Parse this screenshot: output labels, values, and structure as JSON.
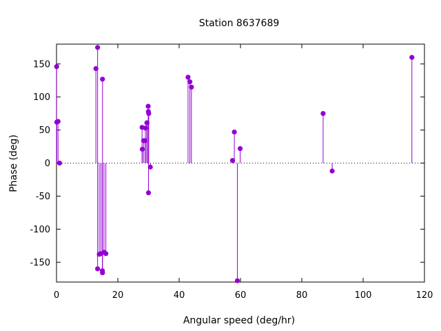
{
  "chart_data": {
    "type": "scatter",
    "style": "impulses-with-points",
    "title": "Station 8637689",
    "xlabel": "Angular speed (deg/hr)",
    "ylabel": "Phase (deg)",
    "xlim": [
      0,
      120
    ],
    "ylim": [
      -180,
      180
    ],
    "xticks": [
      0,
      20,
      40,
      60,
      80,
      100,
      120
    ],
    "yticks": [
      -150,
      -100,
      -50,
      0,
      50,
      100,
      150
    ],
    "zero_line": "dotted",
    "grid": false,
    "legend": "none",
    "color": "#9400d3",
    "points": [
      {
        "x": 0.04,
        "y": 146
      },
      {
        "x": 0.08,
        "y": 62
      },
      {
        "x": 0.5,
        "y": 63
      },
      {
        "x": 1.0,
        "y": 0
      },
      {
        "x": 12.85,
        "y": 143
      },
      {
        "x": 13.4,
        "y": -160
      },
      {
        "x": 13.4,
        "y": 175
      },
      {
        "x": 13.94,
        "y": -138
      },
      {
        "x": 14.5,
        "y": -137
      },
      {
        "x": 14.96,
        "y": -163
      },
      {
        "x": 15.0,
        "y": -166
      },
      {
        "x": 15.0,
        "y": 127
      },
      {
        "x": 15.5,
        "y": -135
      },
      {
        "x": 16.1,
        "y": -137
      },
      {
        "x": 27.9,
        "y": 54
      },
      {
        "x": 27.97,
        "y": 21
      },
      {
        "x": 28.4,
        "y": 34
      },
      {
        "x": 28.9,
        "y": 34
      },
      {
        "x": 29.0,
        "y": 53
      },
      {
        "x": 29.46,
        "y": 61
      },
      {
        "x": 29.53,
        "y": 61
      },
      {
        "x": 29.9,
        "y": 86
      },
      {
        "x": 29.96,
        "y": 78
      },
      {
        "x": 30.0,
        "y": -45
      },
      {
        "x": 30.08,
        "y": 75
      },
      {
        "x": 30.6,
        "y": -6
      },
      {
        "x": 42.9,
        "y": 130
      },
      {
        "x": 43.5,
        "y": 123
      },
      {
        "x": 44.0,
        "y": 115
      },
      {
        "x": 57.4,
        "y": 4
      },
      {
        "x": 58.0,
        "y": 47
      },
      {
        "x": 58.98,
        "y": -178
      },
      {
        "x": 59.9,
        "y": 22
      },
      {
        "x": 86.95,
        "y": 75
      },
      {
        "x": 89.9,
        "y": -12
      },
      {
        "x": 115.9,
        "y": 160
      }
    ]
  }
}
